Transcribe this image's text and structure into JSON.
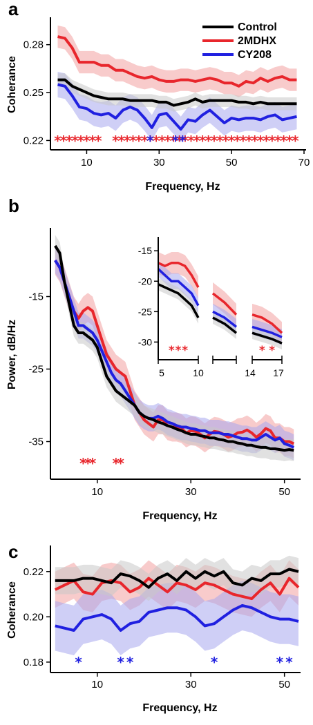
{
  "colors": {
    "Control": "#000000",
    "2MDHX": "#e8262c",
    "CY208": "#2020e0",
    "Control_band": "#c8c8c8",
    "2MDHX_band": "#f2a0a0",
    "CY208_band": "#a8a8ee"
  },
  "chart_data": [
    {
      "panel": "a",
      "type": "line",
      "xlabel": "Frequency, Hz",
      "ylabel": "Coherance",
      "xlim": [
        0,
        70
      ],
      "ylim": [
        0.215,
        0.295
      ],
      "xticks": [
        10,
        30,
        50,
        70
      ],
      "yticks": [
        0.22,
        0.25,
        0.28
      ],
      "ytick_labels": [
        "0.22",
        "0.25",
        "0.28"
      ],
      "legend": {
        "placement": "top-right",
        "entries": [
          "Control",
          "2MDHX",
          "CY208"
        ]
      },
      "x": [
        2,
        4,
        6,
        8,
        10,
        12,
        14,
        16,
        18,
        20,
        22,
        24,
        26,
        28,
        30,
        32,
        34,
        36,
        38,
        40,
        42,
        44,
        46,
        48,
        50,
        52,
        54,
        56,
        58,
        60,
        62,
        64,
        66,
        68
      ],
      "series": [
        {
          "name": "Control",
          "color_key": "Control",
          "values": [
            0.258,
            0.258,
            0.254,
            0.252,
            0.25,
            0.248,
            0.247,
            0.246,
            0.246,
            0.246,
            0.245,
            0.245,
            0.245,
            0.245,
            0.244,
            0.244,
            0.242,
            0.243,
            0.244,
            0.246,
            0.244,
            0.245,
            0.245,
            0.245,
            0.245,
            0.244,
            0.244,
            0.243,
            0.244,
            0.243,
            0.243,
            0.243,
            0.243,
            0.243
          ],
          "band_halfwidth": 0.004
        },
        {
          "name": "2MDHX",
          "color_key": "2MDHX",
          "values": [
            0.285,
            0.284,
            0.278,
            0.269,
            0.269,
            0.269,
            0.267,
            0.267,
            0.264,
            0.264,
            0.262,
            0.26,
            0.259,
            0.26,
            0.258,
            0.257,
            0.257,
            0.258,
            0.258,
            0.257,
            0.258,
            0.259,
            0.258,
            0.256,
            0.256,
            0.254,
            0.257,
            0.256,
            0.259,
            0.257,
            0.259,
            0.26,
            0.258,
            0.258
          ],
          "band_halfwidth": 0.007
        },
        {
          "name": "CY208",
          "color_key": "CY208",
          "values": [
            0.255,
            0.254,
            0.248,
            0.241,
            0.24,
            0.237,
            0.236,
            0.237,
            0.234,
            0.239,
            0.241,
            0.239,
            0.234,
            0.228,
            0.236,
            0.237,
            0.232,
            0.227,
            0.233,
            0.232,
            0.236,
            0.239,
            0.235,
            0.231,
            0.234,
            0.233,
            0.234,
            0.234,
            0.233,
            0.235,
            0.236,
            0.233,
            0.234,
            0.235
          ],
          "band_halfwidth": 0.008
        }
      ],
      "significance": [
        {
          "color_key": "2MDHX",
          "x": [
            2,
            3.6,
            5.2,
            6.8,
            8.4,
            10,
            11.6,
            13.2,
            18,
            19.6,
            21.2,
            22.8,
            24.4,
            26,
            27.6,
            29.2,
            30.8,
            32.4,
            34,
            35.6,
            37.2,
            38.8,
            40.4,
            42,
            43.6,
            45.2,
            46.8,
            48.4,
            50,
            51.6,
            53.2,
            54.8,
            56.4,
            58,
            59.6,
            61.2,
            62.8,
            64.4,
            66,
            67.6
          ]
        },
        {
          "color_key": "CY208",
          "x": [
            27.5,
            34.5,
            36.5
          ]
        }
      ]
    },
    {
      "panel": "b",
      "type": "line",
      "xlabel": "Frequency, Hz",
      "ylabel": "Power, dB/Hz",
      "xlim": [
        0,
        53
      ],
      "ylim": [
        -40,
        -6
      ],
      "xticks": [
        10,
        30,
        50
      ],
      "yticks": [
        -15,
        -25,
        -35
      ],
      "x": [
        1,
        2,
        3,
        4,
        5,
        6,
        7,
        8,
        9,
        10,
        11,
        12,
        13,
        14,
        15,
        16,
        17,
        18,
        19,
        20,
        21,
        22,
        23,
        24,
        25,
        26,
        27,
        28,
        29,
        30,
        31,
        32,
        33,
        34,
        35,
        36,
        37,
        38,
        39,
        40,
        41,
        42,
        43,
        44,
        45,
        46,
        47,
        48,
        49,
        50,
        51,
        52
      ],
      "series": [
        {
          "name": "Control",
          "color_key": "Control",
          "values": [
            -8,
            -9,
            -13,
            -16,
            -19,
            -20,
            -20,
            -20.5,
            -21,
            -22,
            -24,
            -26,
            -27,
            -28,
            -28.5,
            -29,
            -29.5,
            -30,
            -31,
            -31.5,
            -31.8,
            -32,
            -32.3,
            -32.5,
            -32.8,
            -33,
            -33.3,
            -33.5,
            -33.8,
            -34,
            -34,
            -34.2,
            -34.3,
            -34.5,
            -34.5,
            -34.7,
            -34.8,
            -35,
            -35,
            -35.2,
            -35.3,
            -35.5,
            -35.5,
            -35.7,
            -35.8,
            -35.8,
            -36,
            -36,
            -36.1,
            -36.2,
            -36.1,
            -36.2
          ],
          "band_halfwidth": 1.5
        },
        {
          "name": "2MDHX",
          "color_key": "2MDHX",
          "values": [
            -10,
            -11,
            -13,
            -15,
            -17,
            -18,
            -17,
            -16.5,
            -17,
            -19,
            -21,
            -23,
            -24,
            -25,
            -25.5,
            -26,
            -28,
            -30,
            -31,
            -32,
            -32.5,
            -33,
            -32,
            -32,
            -32.8,
            -33,
            -33,
            -33.2,
            -33.8,
            -33.5,
            -33.6,
            -34,
            -34.5,
            -34,
            -33.6,
            -33.7,
            -34,
            -34.4,
            -34.2,
            -33.8,
            -33.7,
            -33.4,
            -33.8,
            -34.4,
            -33.9,
            -33.2,
            -33.5,
            -34.5,
            -34.5,
            -35,
            -35,
            -35.3
          ],
          "band_halfwidth": 2.0
        },
        {
          "name": "CY208",
          "color_key": "CY208",
          "values": [
            -10,
            -11,
            -13,
            -15,
            -17,
            -19,
            -19,
            -19.5,
            -20,
            -21,
            -22.5,
            -24,
            -25.5,
            -26.5,
            -27,
            -28,
            -29,
            -30,
            -31,
            -31.5,
            -31.8,
            -31.8,
            -31.5,
            -31.8,
            -32.3,
            -32.5,
            -32.8,
            -33,
            -33,
            -33.2,
            -33.3,
            -33.5,
            -33.5,
            -33.8,
            -33.8,
            -33.8,
            -34,
            -34,
            -34.2,
            -34.4,
            -34.6,
            -34.6,
            -34.8,
            -34.8,
            -34.4,
            -34,
            -34.4,
            -34.8,
            -34.5,
            -35.3,
            -35.5,
            -35.8
          ],
          "band_halfwidth": 1.8
        }
      ],
      "significance": [
        {
          "color_key": "2MDHX",
          "x": [
            7,
            8,
            9,
            14,
            15
          ]
        }
      ],
      "inset": {
        "xticks": [
          5,
          10,
          14,
          17
        ],
        "yticks": [
          -15,
          -20,
          -25,
          -30
        ],
        "ylim": [
          -32,
          -13.5
        ],
        "segments": [
          {
            "x": [
              4,
              5,
              6,
              7,
              8,
              9,
              10
            ]
          },
          {
            "x": [
              11,
              12,
              13
            ]
          },
          {
            "x": [
              14,
              15,
              16,
              17
            ]
          }
        ],
        "series": [
          {
            "name": "Control",
            "color_key": "Control",
            "values": [
              -20.5,
              -21,
              -21.5,
              -22,
              -23,
              -24,
              -26,
              -26,
              -27,
              -28.5,
              -28.5,
              -29,
              -29.5,
              -30.2
            ],
            "band_halfwidth": 1.0
          },
          {
            "name": "2MDHX",
            "color_key": "2MDHX",
            "values": [
              -17,
              -17.5,
              -17,
              -17,
              -17.5,
              -19,
              -21,
              -22,
              -23.5,
              -25.5,
              -25.5,
              -26,
              -27,
              -28.5
            ],
            "band_halfwidth": 1.8
          },
          {
            "name": "CY208",
            "color_key": "CY208",
            "values": [
              -18,
              -19,
              -20,
              -20,
              -21,
              -22,
              -24,
              -25,
              -26,
              -27.5,
              -27.5,
              -28,
              -28.5,
              -29.2
            ],
            "band_halfwidth": 1.3
          }
        ],
        "significance": [
          {
            "color_key": "2MDHX",
            "x": [
              6,
              7,
              8,
              15,
              16
            ]
          }
        ]
      }
    },
    {
      "panel": "c",
      "type": "line",
      "xlabel": "Frequency, Hz",
      "ylabel": "Coherance",
      "xlim": [
        0,
        53
      ],
      "ylim": [
        0.176,
        0.23
      ],
      "xticks": [
        10,
        30,
        50
      ],
      "yticks": [
        0.18,
        0.2,
        0.22
      ],
      "ytick_labels": [
        "0.18",
        "0.20",
        "0.22"
      ],
      "x": [
        1,
        3,
        5,
        7,
        9,
        11,
        13,
        15,
        17,
        19,
        21,
        23,
        25,
        27,
        29,
        31,
        33,
        35,
        37,
        39,
        41,
        43,
        45,
        47,
        49,
        51,
        53
      ],
      "series": [
        {
          "name": "Control",
          "color_key": "Control",
          "values": [
            0.216,
            0.216,
            0.216,
            0.217,
            0.217,
            0.216,
            0.215,
            0.219,
            0.218,
            0.216,
            0.213,
            0.217,
            0.219,
            0.216,
            0.22,
            0.217,
            0.22,
            0.218,
            0.22,
            0.215,
            0.214,
            0.217,
            0.216,
            0.219,
            0.219,
            0.221,
            0.22
          ],
          "band_halfwidth": 0.006
        },
        {
          "name": "2MDHX",
          "color_key": "2MDHX",
          "values": [
            0.212,
            0.214,
            0.216,
            0.211,
            0.21,
            0.215,
            0.216,
            0.215,
            0.211,
            0.213,
            0.217,
            0.214,
            0.211,
            0.215,
            0.214,
            0.212,
            0.215,
            0.214,
            0.212,
            0.21,
            0.209,
            0.208,
            0.212,
            0.215,
            0.21,
            0.217,
            0.213
          ],
          "band_halfwidth": 0.008
        },
        {
          "name": "CY208",
          "color_key": "CY208",
          "values": [
            0.196,
            0.195,
            0.194,
            0.199,
            0.2,
            0.201,
            0.199,
            0.194,
            0.197,
            0.198,
            0.202,
            0.203,
            0.204,
            0.204,
            0.203,
            0.2,
            0.196,
            0.197,
            0.2,
            0.203,
            0.205,
            0.204,
            0.202,
            0.2,
            0.199,
            0.199,
            0.198
          ],
          "band_halfwidth": 0.011
        }
      ],
      "significance": [
        {
          "color_key": "CY208",
          "x": [
            6,
            15,
            17,
            35,
            49,
            51
          ]
        }
      ]
    }
  ]
}
